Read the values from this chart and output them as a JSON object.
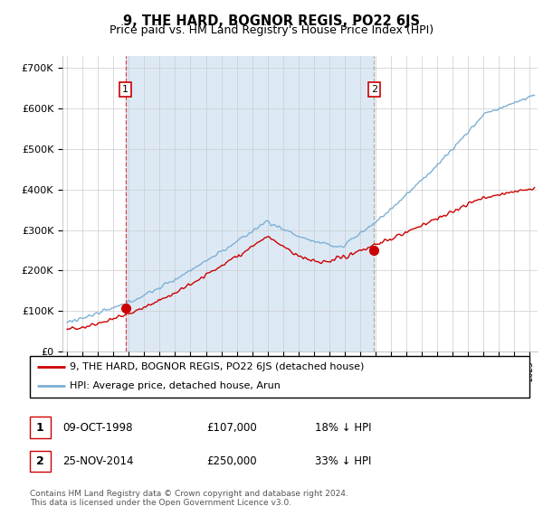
{
  "title": "9, THE HARD, BOGNOR REGIS, PO22 6JS",
  "subtitle": "Price paid vs. HM Land Registry's House Price Index (HPI)",
  "ylabel_ticks": [
    "£0",
    "£100K",
    "£200K",
    "£300K",
    "£400K",
    "£500K",
    "£600K",
    "£700K"
  ],
  "ytick_values": [
    0,
    100000,
    200000,
    300000,
    400000,
    500000,
    600000,
    700000
  ],
  "ylim": [
    0,
    730000
  ],
  "xlim_start": 1994.7,
  "xlim_end": 2025.5,
  "purchase1_date": 1998.78,
  "purchase1_price": 107000,
  "purchase2_date": 2014.9,
  "purchase2_price": 250000,
  "hpi_color": "#7db0d5",
  "hpi_fill_color": "#dce9f5",
  "price_color": "#cc0000",
  "vline1_color": "#dd4444",
  "vline2_color": "#aaaaaa",
  "bg_color": "#ffffff",
  "grid_color": "#cccccc",
  "legend1_label": "9, THE HARD, BOGNOR REGIS, PO22 6JS (detached house)",
  "legend2_label": "HPI: Average price, detached house, Arun",
  "table_row1": [
    "1",
    "09-OCT-1998",
    "£107,000",
    "18% ↓ HPI"
  ],
  "table_row2": [
    "2",
    "25-NOV-2014",
    "£250,000",
    "33% ↓ HPI"
  ],
  "footer": "Contains HM Land Registry data © Crown copyright and database right 2024.\nThis data is licensed under the Open Government Licence v3.0.",
  "title_fontsize": 10.5,
  "subtitle_fontsize": 9,
  "axis_fontsize": 8
}
